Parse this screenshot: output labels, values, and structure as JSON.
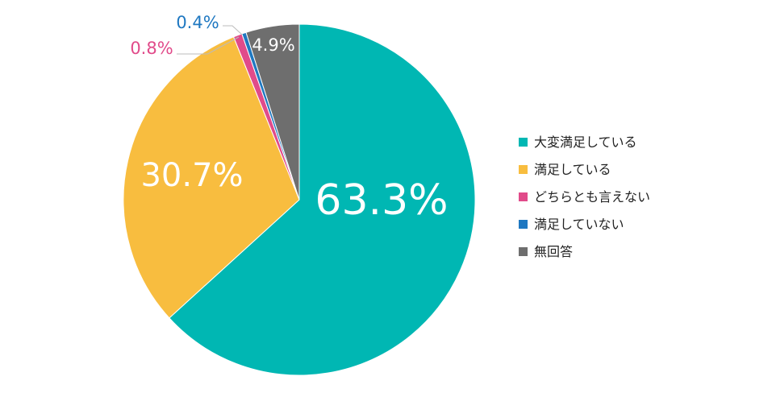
{
  "chart_data": {
    "type": "pie",
    "title": "",
    "start_angle_deg": 0,
    "direction": "clockwise",
    "slices": [
      {
        "label": "大変満足している",
        "value": 63.3,
        "display": "63.3%",
        "color": "#00b7b3"
      },
      {
        "label": "満足している",
        "value": 30.7,
        "display": "30.7%",
        "color": "#f8bd3f"
      },
      {
        "label": "どちらとも言えない",
        "value": 0.8,
        "display": "0.8%",
        "color": "#e14b8a"
      },
      {
        "label": "満足していない",
        "value": 0.4,
        "display": "0.4%",
        "color": "#1f78c1"
      },
      {
        "label": "無回答",
        "value": 4.9,
        "display": "4.9%",
        "color": "#6e6e6e"
      }
    ],
    "legend_position": "right"
  }
}
